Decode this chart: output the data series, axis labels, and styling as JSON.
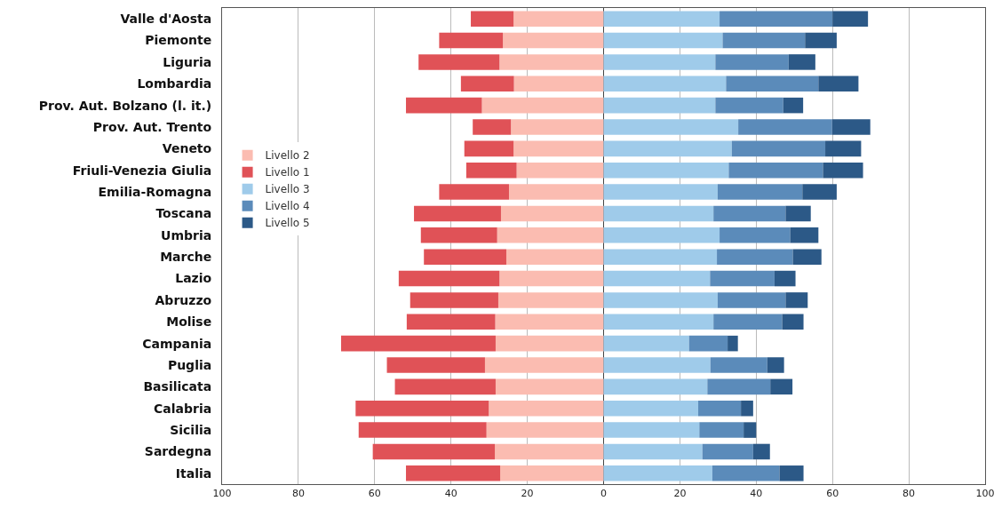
{
  "chart_data": {
    "type": "bar",
    "orientation": "horizontal",
    "stacked": true,
    "categories": [
      "Valle d'Aosta",
      "Piemonte",
      "Liguria",
      "Lombardia",
      "Prov. Aut. Bolzano (l. it.)",
      "Prov. Aut. Trento",
      "Veneto",
      "Friuli-Venezia Giulia",
      "Emilia-Romagna",
      "Toscana",
      "Umbria",
      "Marche",
      "Lazio",
      "Abruzzo",
      "Molise",
      "Campania",
      "Puglia",
      "Basilicata",
      "Calabria",
      "Sicilia",
      "Sardegna",
      "Italia"
    ],
    "series": [
      {
        "name": "Livello 2",
        "color": "#fbbcb1",
        "values": [
          -23.6,
          -26.4,
          -27.3,
          -23.5,
          -31.9,
          -24.3,
          -23.6,
          -22.8,
          -24.8,
          -26.9,
          -27.9,
          -25.5,
          -27.3,
          -27.6,
          -28.4,
          -28.3,
          -31.1,
          -28.3,
          -30.1,
          -30.7,
          -28.5,
          -27.1
        ]
      },
      {
        "name": "Livello 1",
        "color": "#e05257",
        "values": [
          -11.2,
          -16.7,
          -21.2,
          -13.9,
          -19.9,
          -10.0,
          -12.9,
          -13.2,
          -18.3,
          -22.8,
          -20.0,
          -21.6,
          -26.4,
          -23.1,
          -23.2,
          -40.5,
          -25.7,
          -26.4,
          -34.9,
          -33.5,
          -32.0,
          -24.7
        ]
      },
      {
        "name": "Livello 3",
        "color": "#9fcbea",
        "values": [
          30.4,
          31.2,
          29.3,
          32.1,
          29.3,
          35.3,
          33.6,
          32.8,
          29.9,
          28.8,
          30.4,
          29.7,
          27.9,
          29.9,
          28.8,
          22.4,
          28.0,
          27.2,
          24.8,
          25.1,
          25.9,
          28.5
        ]
      },
      {
        "name": "Livello 4",
        "color": "#5b8bba",
        "values": [
          29.6,
          21.6,
          19.2,
          24.2,
          17.8,
          24.6,
          24.5,
          24.7,
          22.2,
          18.9,
          18.5,
          19.9,
          16.9,
          17.8,
          18.0,
          10.1,
          14.9,
          16.5,
          11.2,
          11.6,
          13.3,
          17.6
        ]
      },
      {
        "name": "Livello 5",
        "color": "#2c5987",
        "values": [
          9.3,
          8.3,
          7.0,
          10.5,
          5.2,
          10.0,
          9.4,
          10.5,
          9.0,
          6.6,
          7.4,
          7.5,
          5.5,
          5.8,
          5.6,
          2.7,
          4.4,
          5.8,
          3.2,
          3.3,
          4.4,
          6.3
        ]
      }
    ],
    "xlim": [
      -100,
      100
    ],
    "xticks": [
      {
        "value": -100,
        "label": "100"
      },
      {
        "value": -80,
        "label": "80"
      },
      {
        "value": -60,
        "label": "60"
      },
      {
        "value": -40,
        "label": "40"
      },
      {
        "value": -20,
        "label": "20"
      },
      0,
      20,
      40,
      60,
      80,
      100
    ],
    "grid": "x",
    "legend": "left"
  }
}
